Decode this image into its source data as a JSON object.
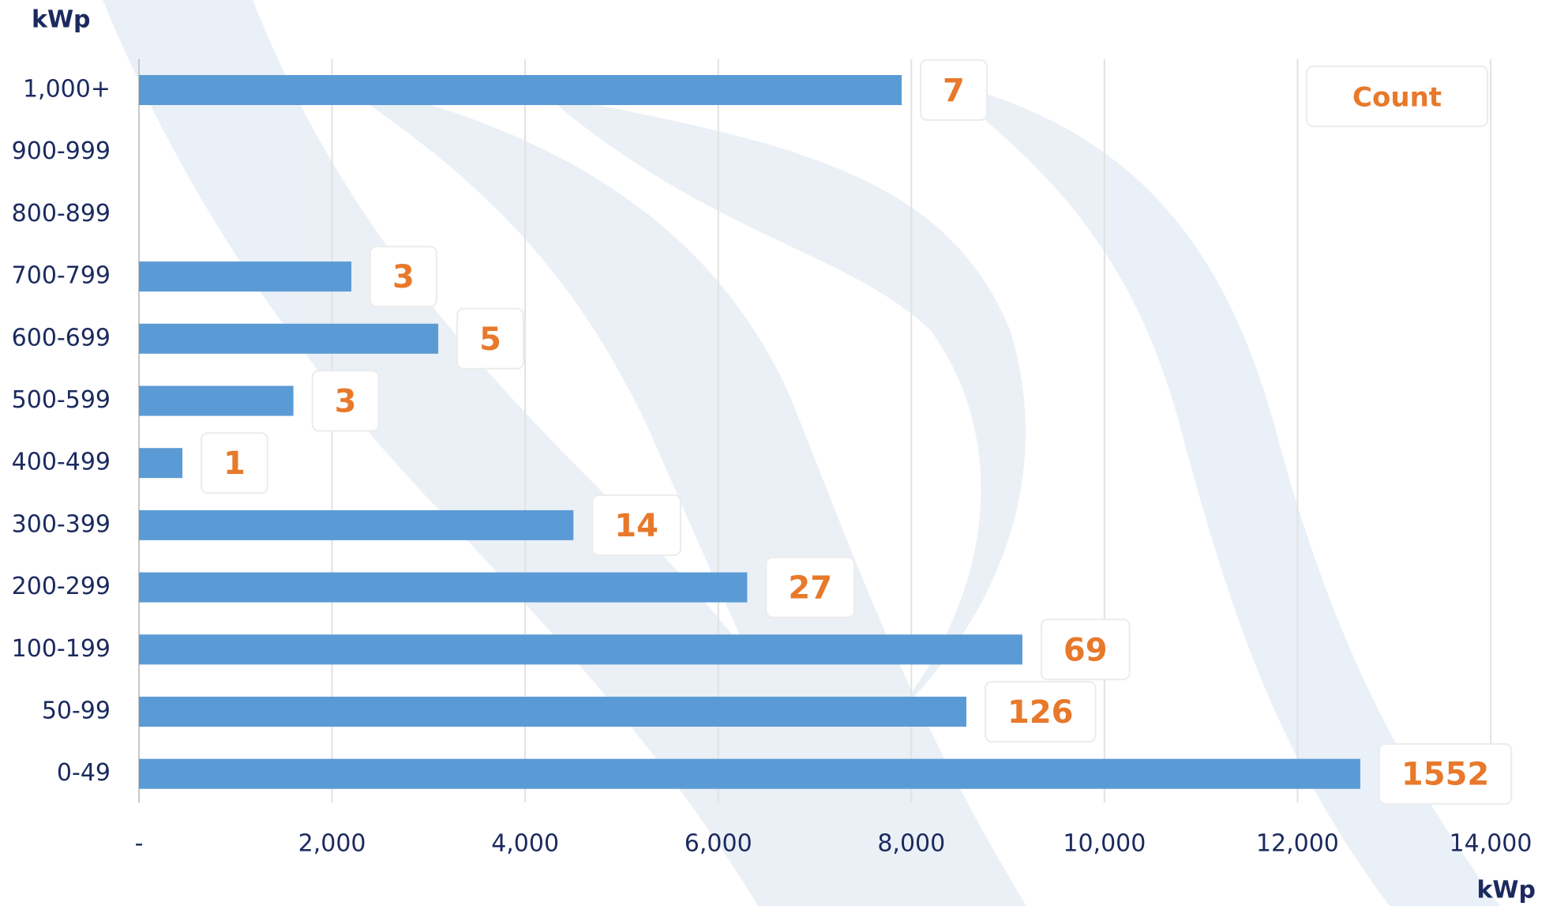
{
  "chart_data": {
    "type": "bar",
    "orientation": "horizontal",
    "y_label": "kWp",
    "x_label": "kWp",
    "categories": [
      "1,000+",
      "900-999",
      "800-899",
      "700-799",
      "600-699",
      "500-599",
      "400-499",
      "300-399",
      "200-299",
      "100-199",
      "50-99",
      "0-49"
    ],
    "values": [
      7900,
      null,
      null,
      2200,
      3100,
      1600,
      450,
      4500,
      6300,
      9150,
      8570,
      12650
    ],
    "color": "#5b9bd5",
    "counts": {
      "name": "Count",
      "color": "#e8792b",
      "values": [
        7,
        null,
        null,
        3,
        5,
        3,
        1,
        14,
        27,
        69,
        126,
        1552
      ]
    },
    "xlim": [
      0,
      14000
    ],
    "xticks": [
      {
        "value": 0,
        "label": "-"
      },
      {
        "value": 2000,
        "label": "2,000"
      },
      {
        "value": 4000,
        "label": "4,000"
      },
      {
        "value": 6000,
        "label": "6,000"
      },
      {
        "value": 8000,
        "label": "8,000"
      },
      {
        "value": 10000,
        "label": "10,000"
      },
      {
        "value": 12000,
        "label": "12,000"
      },
      {
        "value": 14000,
        "label": "14,000"
      }
    ],
    "grid": true,
    "legend": "top-right"
  }
}
